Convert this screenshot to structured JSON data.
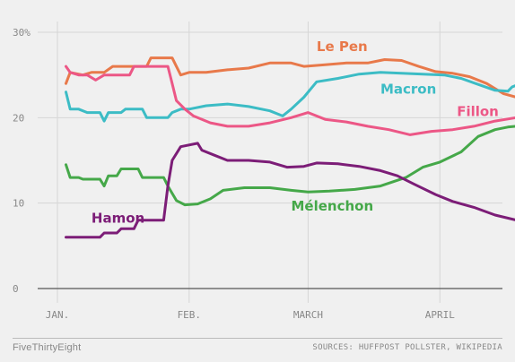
{
  "chart_data": {
    "type": "line",
    "ylim": [
      0,
      30
    ],
    "yticks": [
      0,
      10,
      20,
      30
    ],
    "ytick_labels": [
      "0",
      "10",
      "20",
      "30%"
    ],
    "xlim": [
      "2017-01-01",
      "2017-04-21"
    ],
    "xticks": [
      {
        "date": "2017-01-01",
        "label": "JAN."
      },
      {
        "date": "2017-02-01",
        "label": "FEB."
      },
      {
        "date": "2017-03-01",
        "label": "MARCH"
      },
      {
        "date": "2017-04-01",
        "label": "APRIL"
      }
    ],
    "grid": true,
    "series": [
      {
        "name": "Le Pen",
        "color": "#e8794a",
        "points": [
          [
            "2017-01-03",
            24
          ],
          [
            "2017-01-04",
            25.3
          ],
          [
            "2017-01-07",
            25
          ],
          [
            "2017-01-09",
            25.3
          ],
          [
            "2017-01-12",
            25.3
          ],
          [
            "2017-01-14",
            26
          ],
          [
            "2017-01-22",
            26
          ],
          [
            "2017-01-23",
            27
          ],
          [
            "2017-01-28",
            27
          ],
          [
            "2017-01-29",
            26
          ],
          [
            "2017-01-30",
            25
          ],
          [
            "2017-02-01",
            25.3
          ],
          [
            "2017-02-05",
            25.3
          ],
          [
            "2017-02-10",
            25.6
          ],
          [
            "2017-02-15",
            25.8
          ],
          [
            "2017-02-20",
            26.4
          ],
          [
            "2017-02-25",
            26.4
          ],
          [
            "2017-02-28",
            26
          ],
          [
            "2017-03-05",
            26.2
          ],
          [
            "2017-03-10",
            26.4
          ],
          [
            "2017-03-15",
            26.4
          ],
          [
            "2017-03-19",
            26.8
          ],
          [
            "2017-03-23",
            26.7
          ],
          [
            "2017-03-27",
            26
          ],
          [
            "2017-03-31",
            25.4
          ],
          [
            "2017-04-04",
            25.2
          ],
          [
            "2017-04-08",
            24.8
          ],
          [
            "2017-04-12",
            24
          ],
          [
            "2017-04-16",
            22.8
          ],
          [
            "2017-04-19",
            22.4
          ]
        ]
      },
      {
        "name": "Macron",
        "color": "#3cbcc5",
        "points": [
          [
            "2017-01-03",
            23
          ],
          [
            "2017-01-04",
            21
          ],
          [
            "2017-01-06",
            21
          ],
          [
            "2017-01-08",
            20.6
          ],
          [
            "2017-01-11",
            20.6
          ],
          [
            "2017-01-12",
            19.6
          ],
          [
            "2017-01-13",
            20.6
          ],
          [
            "2017-01-16",
            20.6
          ],
          [
            "2017-01-17",
            21
          ],
          [
            "2017-01-21",
            21
          ],
          [
            "2017-01-22",
            20
          ],
          [
            "2017-01-27",
            20
          ],
          [
            "2017-01-28",
            20.6
          ],
          [
            "2017-01-30",
            21
          ],
          [
            "2017-02-01",
            21
          ],
          [
            "2017-02-05",
            21.4
          ],
          [
            "2017-02-10",
            21.6
          ],
          [
            "2017-02-15",
            21.3
          ],
          [
            "2017-02-20",
            20.8
          ],
          [
            "2017-02-23",
            20.2
          ],
          [
            "2017-02-25",
            21
          ],
          [
            "2017-02-28",
            22.4
          ],
          [
            "2017-03-03",
            24.2
          ],
          [
            "2017-03-08",
            24.6
          ],
          [
            "2017-03-13",
            25.1
          ],
          [
            "2017-03-18",
            25.3
          ],
          [
            "2017-03-23",
            25.2
          ],
          [
            "2017-03-28",
            25.1
          ],
          [
            "2017-04-02",
            25
          ],
          [
            "2017-04-06",
            24.6
          ],
          [
            "2017-04-10",
            23.9
          ],
          [
            "2017-04-14",
            23.2
          ],
          [
            "2017-04-17",
            23.1
          ],
          [
            "2017-04-18",
            23.6
          ],
          [
            "2017-04-19",
            23.8
          ]
        ]
      },
      {
        "name": "Fillon",
        "color": "#ec5786",
        "points": [
          [
            "2017-01-03",
            26
          ],
          [
            "2017-01-04",
            25.3
          ],
          [
            "2017-01-06",
            25
          ],
          [
            "2017-01-08",
            25
          ],
          [
            "2017-01-10",
            24.4
          ],
          [
            "2017-01-12",
            25
          ],
          [
            "2017-01-16",
            25
          ],
          [
            "2017-01-18",
            25
          ],
          [
            "2017-01-19",
            26
          ],
          [
            "2017-01-27",
            26
          ],
          [
            "2017-01-28",
            24
          ],
          [
            "2017-01-29",
            22
          ],
          [
            "2017-01-31",
            21
          ],
          [
            "2017-02-02",
            20.2
          ],
          [
            "2017-02-06",
            19.4
          ],
          [
            "2017-02-10",
            19
          ],
          [
            "2017-02-15",
            19
          ],
          [
            "2017-02-20",
            19.4
          ],
          [
            "2017-02-25",
            20
          ],
          [
            "2017-03-01",
            20.6
          ],
          [
            "2017-03-05",
            19.8
          ],
          [
            "2017-03-10",
            19.5
          ],
          [
            "2017-03-15",
            19
          ],
          [
            "2017-03-20",
            18.6
          ],
          [
            "2017-03-25",
            18
          ],
          [
            "2017-03-30",
            18.4
          ],
          [
            "2017-04-04",
            18.6
          ],
          [
            "2017-04-09",
            19
          ],
          [
            "2017-04-14",
            19.6
          ],
          [
            "2017-04-19",
            20
          ]
        ]
      },
      {
        "name": "Mélenchon",
        "color": "#45a849",
        "points": [
          [
            "2017-01-03",
            14.5
          ],
          [
            "2017-01-04",
            13
          ],
          [
            "2017-01-06",
            13
          ],
          [
            "2017-01-07",
            12.8
          ],
          [
            "2017-01-11",
            12.8
          ],
          [
            "2017-01-12",
            12
          ],
          [
            "2017-01-13",
            13.2
          ],
          [
            "2017-01-15",
            13.2
          ],
          [
            "2017-01-16",
            14
          ],
          [
            "2017-01-20",
            14
          ],
          [
            "2017-01-21",
            13
          ],
          [
            "2017-01-26",
            13
          ],
          [
            "2017-01-27",
            12
          ],
          [
            "2017-01-29",
            10.3
          ],
          [
            "2017-01-31",
            9.8
          ],
          [
            "2017-02-03",
            9.9
          ],
          [
            "2017-02-06",
            10.5
          ],
          [
            "2017-02-09",
            11.5
          ],
          [
            "2017-02-14",
            11.8
          ],
          [
            "2017-02-20",
            11.8
          ],
          [
            "2017-02-25",
            11.5
          ],
          [
            "2017-03-01",
            11.3
          ],
          [
            "2017-03-06",
            11.4
          ],
          [
            "2017-03-12",
            11.6
          ],
          [
            "2017-03-18",
            12
          ],
          [
            "2017-03-24",
            13
          ],
          [
            "2017-03-28",
            14.2
          ],
          [
            "2017-04-01",
            14.8
          ],
          [
            "2017-04-06",
            16
          ],
          [
            "2017-04-10",
            17.8
          ],
          [
            "2017-04-14",
            18.6
          ],
          [
            "2017-04-17",
            18.9
          ],
          [
            "2017-04-19",
            19
          ]
        ]
      },
      {
        "name": "Hamon",
        "color": "#7c1d77",
        "points": [
          [
            "2017-01-03",
            6
          ],
          [
            "2017-01-11",
            6
          ],
          [
            "2017-01-12",
            6.5
          ],
          [
            "2017-01-15",
            6.5
          ],
          [
            "2017-01-16",
            7
          ],
          [
            "2017-01-19",
            7
          ],
          [
            "2017-01-20",
            8
          ],
          [
            "2017-01-26",
            8
          ],
          [
            "2017-01-27",
            12
          ],
          [
            "2017-01-28",
            15
          ],
          [
            "2017-01-30",
            16.6
          ],
          [
            "2017-02-03",
            17
          ],
          [
            "2017-02-04",
            16.2
          ],
          [
            "2017-02-07",
            15.6
          ],
          [
            "2017-02-10",
            15
          ],
          [
            "2017-02-15",
            15
          ],
          [
            "2017-02-20",
            14.8
          ],
          [
            "2017-02-24",
            14.2
          ],
          [
            "2017-02-28",
            14.3
          ],
          [
            "2017-03-03",
            14.7
          ],
          [
            "2017-03-08",
            14.6
          ],
          [
            "2017-03-13",
            14.3
          ],
          [
            "2017-03-18",
            13.8
          ],
          [
            "2017-03-22",
            13.2
          ],
          [
            "2017-03-26",
            12.2
          ],
          [
            "2017-03-31",
            11
          ],
          [
            "2017-04-04",
            10.2
          ],
          [
            "2017-04-09",
            9.5
          ],
          [
            "2017-04-14",
            8.6
          ],
          [
            "2017-04-19",
            8
          ]
        ]
      }
    ],
    "annotations": [
      {
        "text": "Le Pen",
        "series": "Le Pen",
        "at": [
          "2017-03-03",
          27.8
        ]
      },
      {
        "text": "Macron",
        "series": "Macron",
        "at": [
          "2017-03-18",
          22.8
        ]
      },
      {
        "text": "Fillon",
        "series": "Fillon",
        "at": [
          "2017-04-05",
          20.2
        ]
      },
      {
        "text": "Mélenchon",
        "series": "Mélenchon",
        "at": [
          "2017-02-25",
          9.1
        ]
      },
      {
        "text": "Hamon",
        "series": "Hamon",
        "at": [
          "2017-01-09",
          7.7
        ]
      }
    ]
  },
  "footer": {
    "brand": "FiveThirtyEight",
    "sources": "SOURCES: HUFFPOST POLLSTER, WIKIPEDIA"
  }
}
